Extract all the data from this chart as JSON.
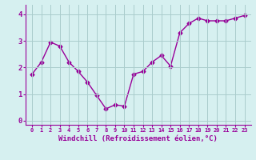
{
  "x": [
    0,
    1,
    2,
    3,
    4,
    5,
    6,
    7,
    8,
    9,
    10,
    11,
    12,
    13,
    14,
    15,
    16,
    17,
    18,
    19,
    20,
    21,
    22,
    23
  ],
  "y": [
    1.75,
    2.2,
    2.95,
    2.8,
    2.2,
    1.85,
    1.45,
    0.95,
    0.45,
    0.6,
    0.55,
    1.75,
    1.85,
    2.2,
    2.45,
    2.05,
    3.3,
    3.65,
    3.85,
    3.75,
    3.75,
    3.75,
    3.85,
    3.95
  ],
  "line_color": "#990099",
  "marker": "D",
  "marker_size": 2.5,
  "bg_color": "#d6f0f0",
  "grid_color": "#aacccc",
  "xlabel": "Windchill (Refroidissement éolien,°C)",
  "xlabel_color": "#990099",
  "tick_color": "#990099",
  "ylim": [
    -0.15,
    4.35
  ],
  "xlim": [
    -0.7,
    23.7
  ],
  "yticks": [
    0,
    1,
    2,
    3,
    4
  ],
  "xticks": [
    0,
    1,
    2,
    3,
    4,
    5,
    6,
    7,
    8,
    9,
    10,
    11,
    12,
    13,
    14,
    15,
    16,
    17,
    18,
    19,
    20,
    21,
    22,
    23
  ],
  "xtick_fontsize": 5.0,
  "ytick_fontsize": 6.5,
  "xlabel_fontsize": 6.5,
  "linewidth": 1.0
}
